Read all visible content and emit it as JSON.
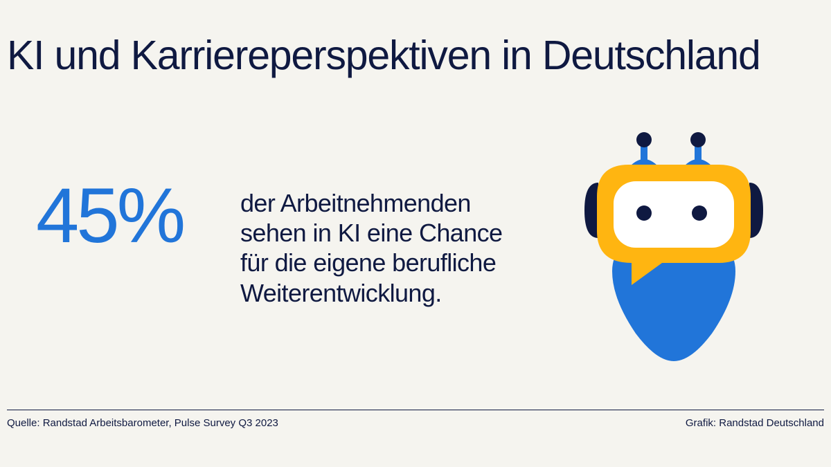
{
  "header": {
    "title": "KI und Karriereperspektiven in Deutschland"
  },
  "statistic": {
    "value": "45%",
    "lines": [
      "der Arbeitnehmenden",
      "sehen in KI eine Chance",
      "für die eigene berufliche",
      "Weiterentwicklung."
    ]
  },
  "illustration": {
    "icon": "robot-icon",
    "colors": {
      "body": "#2175d9",
      "head": "#ffb511",
      "face": "#ffffff",
      "dark": "#0f1941"
    }
  },
  "footer": {
    "source": "Quelle: Randstad Arbeitsbarometer, Pulse Survey Q3 2023",
    "credit": "Grafik: Randstad Deutschland"
  },
  "colors": {
    "background": "#f5f4ef",
    "text": "#0f1941",
    "accent": "#2175d9"
  }
}
